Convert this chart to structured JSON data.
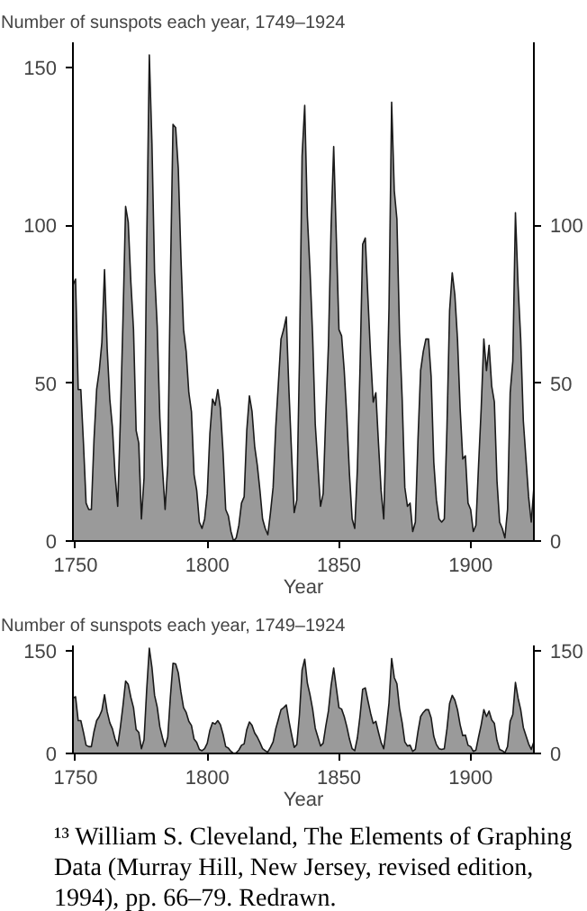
{
  "chart_data": [
    {
      "type": "area",
      "title": "Number of sunspots each year, 1749–1924",
      "xlabel": "Year",
      "x": [
        1749,
        1750,
        1751,
        1752,
        1753,
        1754,
        1755,
        1756,
        1757,
        1758,
        1759,
        1760,
        1761,
        1762,
        1763,
        1764,
        1765,
        1766,
        1767,
        1768,
        1769,
        1770,
        1771,
        1772,
        1773,
        1774,
        1775,
        1776,
        1777,
        1778,
        1779,
        1780,
        1781,
        1782,
        1783,
        1784,
        1785,
        1786,
        1787,
        1788,
        1789,
        1790,
        1791,
        1792,
        1793,
        1794,
        1795,
        1796,
        1797,
        1798,
        1799,
        1800,
        1801,
        1802,
        1803,
        1804,
        1805,
        1806,
        1807,
        1808,
        1809,
        1810,
        1811,
        1812,
        1813,
        1814,
        1815,
        1816,
        1817,
        1818,
        1819,
        1820,
        1821,
        1822,
        1823,
        1824,
        1825,
        1826,
        1827,
        1828,
        1829,
        1830,
        1831,
        1832,
        1833,
        1834,
        1835,
        1836,
        1837,
        1838,
        1839,
        1840,
        1841,
        1842,
        1843,
        1844,
        1845,
        1846,
        1847,
        1848,
        1849,
        1850,
        1851,
        1852,
        1853,
        1854,
        1855,
        1856,
        1857,
        1858,
        1859,
        1860,
        1861,
        1862,
        1863,
        1864,
        1865,
        1866,
        1867,
        1868,
        1869,
        1870,
        1871,
        1872,
        1873,
        1874,
        1875,
        1876,
        1877,
        1878,
        1879,
        1880,
        1881,
        1882,
        1883,
        1884,
        1885,
        1886,
        1887,
        1888,
        1889,
        1890,
        1891,
        1892,
        1893,
        1894,
        1895,
        1896,
        1897,
        1898,
        1899,
        1900,
        1901,
        1902,
        1903,
        1904,
        1905,
        1906,
        1907,
        1908,
        1909,
        1910,
        1911,
        1912,
        1913,
        1914,
        1915,
        1916,
        1917,
        1918,
        1919,
        1920,
        1921,
        1922,
        1923,
        1924
      ],
      "series": [
        {
          "color": "#9a9a9a",
          "values": [
            81,
            83,
            48,
            48,
            31,
            12,
            10,
            10,
            32,
            48,
            54,
            63,
            86,
            61,
            45,
            36,
            21,
            11,
            38,
            70,
            106,
            101,
            82,
            67,
            35,
            31,
            7,
            20,
            93,
            154,
            126,
            85,
            68,
            39,
            23,
            10,
            24,
            83,
            132,
            131,
            118,
            90,
            67,
            60,
            47,
            41,
            21,
            16,
            6,
            4,
            7,
            15,
            34,
            45,
            43,
            48,
            42,
            28,
            10,
            8,
            3,
            0,
            1,
            5,
            12,
            14,
            35,
            46,
            41,
            30,
            24,
            16,
            7,
            4,
            2,
            9,
            17,
            36,
            50,
            64,
            67,
            71,
            48,
            28,
            9,
            13,
            57,
            122,
            138,
            103,
            86,
            65,
            37,
            24,
            11,
            15,
            40,
            62,
            99,
            125,
            96,
            67,
            65,
            54,
            39,
            21,
            7,
            4,
            23,
            55,
            94,
            96,
            77,
            59,
            44,
            47,
            31,
            16,
            7,
            38,
            74,
            139,
            111,
            102,
            66,
            45,
            17,
            11,
            12,
            3,
            6,
            32,
            54,
            60,
            64,
            64,
            52,
            25,
            13,
            7,
            6,
            7,
            36,
            73,
            85,
            78,
            64,
            42,
            26,
            27,
            12,
            10,
            3,
            5,
            24,
            42,
            64,
            54,
            62,
            49,
            44,
            19,
            6,
            4,
            1,
            10,
            47,
            57,
            104,
            81,
            64,
            38,
            26,
            14,
            6,
            17
          ]
        }
      ],
      "xlim": [
        1749,
        1924
      ],
      "xticks": [
        1750,
        1800,
        1850,
        1900
      ],
      "ylim": [
        0,
        158
      ],
      "yticks": [
        0,
        50,
        100,
        150
      ],
      "y2lim": [
        0,
        158
      ],
      "y2ticks": [
        0,
        50,
        100
      ]
    },
    {
      "type": "area",
      "title": "Number of sunspots each year, 1749–1924",
      "xlabel": "Year",
      "x": [
        1749,
        1750,
        1751,
        1752,
        1753,
        1754,
        1755,
        1756,
        1757,
        1758,
        1759,
        1760,
        1761,
        1762,
        1763,
        1764,
        1765,
        1766,
        1767,
        1768,
        1769,
        1770,
        1771,
        1772,
        1773,
        1774,
        1775,
        1776,
        1777,
        1778,
        1779,
        1780,
        1781,
        1782,
        1783,
        1784,
        1785,
        1786,
        1787,
        1788,
        1789,
        1790,
        1791,
        1792,
        1793,
        1794,
        1795,
        1796,
        1797,
        1798,
        1799,
        1800,
        1801,
        1802,
        1803,
        1804,
        1805,
        1806,
        1807,
        1808,
        1809,
        1810,
        1811,
        1812,
        1813,
        1814,
        1815,
        1816,
        1817,
        1818,
        1819,
        1820,
        1821,
        1822,
        1823,
        1824,
        1825,
        1826,
        1827,
        1828,
        1829,
        1830,
        1831,
        1832,
        1833,
        1834,
        1835,
        1836,
        1837,
        1838,
        1839,
        1840,
        1841,
        1842,
        1843,
        1844,
        1845,
        1846,
        1847,
        1848,
        1849,
        1850,
        1851,
        1852,
        1853,
        1854,
        1855,
        1856,
        1857,
        1858,
        1859,
        1860,
        1861,
        1862,
        1863,
        1864,
        1865,
        1866,
        1867,
        1868,
        1869,
        1870,
        1871,
        1872,
        1873,
        1874,
        1875,
        1876,
        1877,
        1878,
        1879,
        1880,
        1881,
        1882,
        1883,
        1884,
        1885,
        1886,
        1887,
        1888,
        1889,
        1890,
        1891,
        1892,
        1893,
        1894,
        1895,
        1896,
        1897,
        1898,
        1899,
        1900,
        1901,
        1902,
        1903,
        1904,
        1905,
        1906,
        1907,
        1908,
        1909,
        1910,
        1911,
        1912,
        1913,
        1914,
        1915,
        1916,
        1917,
        1918,
        1919,
        1920,
        1921,
        1922,
        1923,
        1924
      ],
      "series": [
        {
          "color": "#9a9a9a",
          "values": [
            81,
            83,
            48,
            48,
            31,
            12,
            10,
            10,
            32,
            48,
            54,
            63,
            86,
            61,
            45,
            36,
            21,
            11,
            38,
            70,
            106,
            101,
            82,
            67,
            35,
            31,
            7,
            20,
            93,
            154,
            126,
            85,
            68,
            39,
            23,
            10,
            24,
            83,
            132,
            131,
            118,
            90,
            67,
            60,
            47,
            41,
            21,
            16,
            6,
            4,
            7,
            15,
            34,
            45,
            43,
            48,
            42,
            28,
            10,
            8,
            3,
            0,
            1,
            5,
            12,
            14,
            35,
            46,
            41,
            30,
            24,
            16,
            7,
            4,
            2,
            9,
            17,
            36,
            50,
            64,
            67,
            71,
            48,
            28,
            9,
            13,
            57,
            122,
            138,
            103,
            86,
            65,
            37,
            24,
            11,
            15,
            40,
            62,
            99,
            125,
            96,
            67,
            65,
            54,
            39,
            21,
            7,
            4,
            23,
            55,
            94,
            96,
            77,
            59,
            44,
            47,
            31,
            16,
            7,
            38,
            74,
            139,
            111,
            102,
            66,
            45,
            17,
            11,
            12,
            3,
            6,
            32,
            54,
            60,
            64,
            64,
            52,
            25,
            13,
            7,
            6,
            7,
            36,
            73,
            85,
            78,
            64,
            42,
            26,
            27,
            12,
            10,
            3,
            5,
            24,
            42,
            64,
            54,
            62,
            49,
            44,
            19,
            6,
            4,
            1,
            10,
            47,
            57,
            104,
            81,
            64,
            38,
            26,
            14,
            6,
            17
          ]
        }
      ],
      "xlim": [
        1749,
        1924
      ],
      "xticks": [
        1750,
        1800,
        1850,
        1900
      ],
      "ylim": [
        0,
        158
      ],
      "yticks": [
        0,
        150
      ],
      "y2lim": [
        0,
        158
      ],
      "y2ticks": [
        0,
        150
      ],
      "annotations": [
        "¹³ William S. Cleveland, The Elements of Graphing Data (Murray Hill, New Jersey, revised edition, 1994), pp. 66–79. Redrawn."
      ]
    }
  ]
}
